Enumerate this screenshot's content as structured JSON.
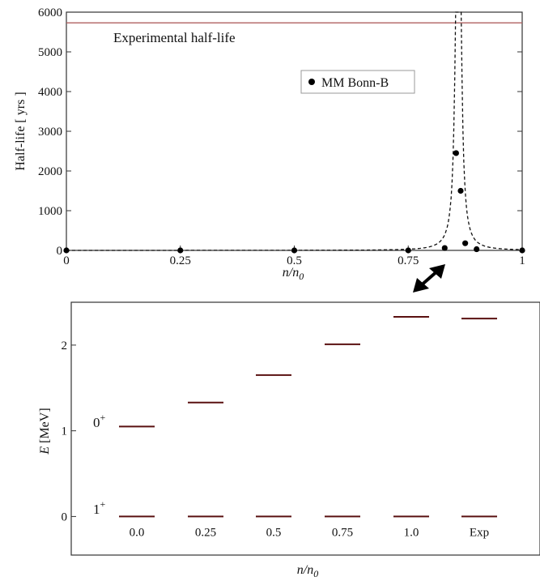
{
  "chart_data": [
    {
      "type": "scatter",
      "title": "",
      "xlabel": "n/n0",
      "ylabel": "Half-life [ yrs ]",
      "xlim": [
        0,
        1
      ],
      "ylim": [
        0,
        6000
      ],
      "xticks": [
        "0",
        "0.25",
        "0.5",
        "0.75",
        "1"
      ],
      "yticks": [
        "0",
        "1000",
        "2000",
        "3000",
        "4000",
        "5000",
        "6000"
      ],
      "reference_line": {
        "label": "Experimental half-life",
        "y": 5730,
        "color": "#b06060"
      },
      "legend": {
        "label": "MM Bonn-B",
        "position": "upper-middle-right"
      },
      "series": [
        {
          "name": "MM Bonn-B",
          "x": [
            0.0,
            0.25,
            0.5,
            0.75,
            0.83,
            0.855,
            0.865,
            0.875,
            0.9,
            1.0
          ],
          "y": [
            0,
            0,
            0,
            0,
            60,
            2450,
            1500,
            180,
            30,
            0
          ]
        }
      ],
      "fit_curve": {
        "style": "dashed",
        "peak_x": 0.86
      }
    },
    {
      "type": "bar",
      "title": "",
      "xlabel": "n/n0",
      "ylabel": "E [MeV]",
      "ylim": [
        -0.45,
        2.5
      ],
      "yticks": [
        "0",
        "1",
        "2"
      ],
      "categories": [
        "0.0",
        "0.25",
        "0.5",
        "0.75",
        "1.0",
        "Exp"
      ],
      "levels": [
        {
          "name": "1+",
          "values": [
            0,
            0,
            0,
            0,
            0,
            0
          ]
        },
        {
          "name": "0+",
          "values": [
            1.05,
            1.33,
            1.65,
            2.01,
            2.33,
            2.31
          ]
        }
      ]
    }
  ],
  "labels": {
    "exp_text": "Experimental half-life",
    "legend_text": "MM Bonn-B",
    "top_ylabel": "Half-life [ yrs ]",
    "bot_ylabel": "[MeV]",
    "bot_ylabel_italic": "E",
    "state_upper": "0",
    "state_upper_sup": "+",
    "state_lower": "1",
    "state_lower_sup": "+",
    "xlabel_main": "n/n",
    "xlabel_sub": "0"
  }
}
